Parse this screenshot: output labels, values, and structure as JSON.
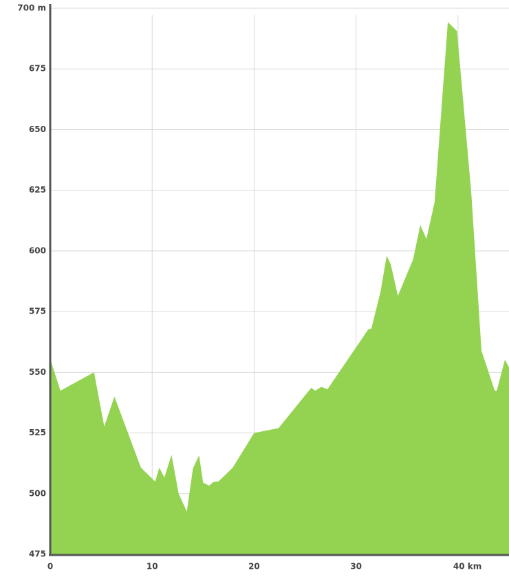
{
  "chart_data": {
    "type": "area",
    "color": "#94d352",
    "grid": true,
    "x": [
      0,
      1.0,
      4.3,
      5.3,
      6.3,
      8.9,
      10.3,
      10.7,
      11.2,
      11.9,
      12.6,
      13.4,
      14.0,
      14.6,
      15.0,
      15.6,
      16.0,
      16.5,
      17.9,
      20.0,
      22.4,
      25.6,
      26.0,
      26.6,
      27.2,
      31.2,
      31.5,
      32.4,
      33.0,
      33.4,
      34.1,
      35.6,
      36.3,
      36.9,
      37.7,
      39.0,
      39.9,
      41.3,
      42.3,
      43.6,
      43.8,
      44.6,
      45
    ],
    "values": [
      555.5,
      542.4,
      550,
      527.7,
      540,
      510.7,
      505,
      510.7,
      506.7,
      516,
      500,
      492.6,
      510.4,
      515.8,
      504.5,
      503.3,
      504.8,
      505,
      510.7,
      525,
      527,
      543.6,
      542.4,
      544,
      543,
      567.7,
      568,
      583.2,
      598,
      594.6,
      581.5,
      596.6,
      610.7,
      605,
      620,
      694.3,
      690.6,
      624,
      558.9,
      542.4,
      542.4,
      555.2,
      552
    ],
    "xlim": [
      0,
      45
    ],
    "ylim": [
      475,
      700
    ],
    "xticks": [
      0,
      10,
      20,
      30,
      {
        "value": 40,
        "label": "40 km"
      }
    ],
    "yticks": [
      475,
      500,
      525,
      550,
      575,
      600,
      625,
      650,
      675,
      {
        "value": 700,
        "label": "700 m"
      }
    ]
  }
}
